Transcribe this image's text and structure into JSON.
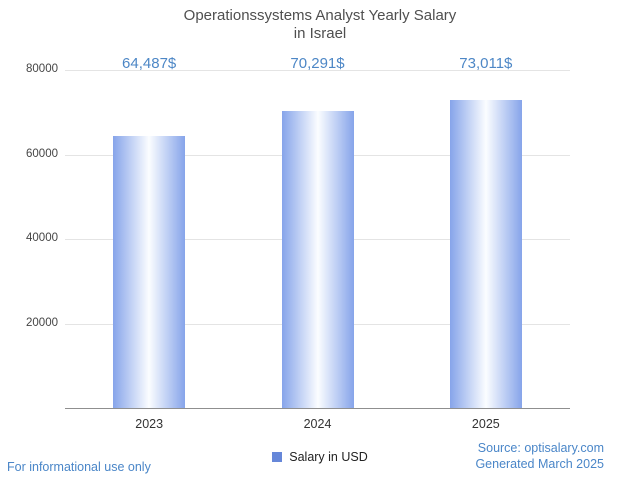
{
  "title": {
    "line1": "Operationssystems Analyst Yearly Salary",
    "line2": "in Israel"
  },
  "chart_data": {
    "type": "bar",
    "title": "Operationssystems Analyst Yearly Salary in Israel",
    "categories": [
      "2023",
      "2024",
      "2025"
    ],
    "values": [
      64487,
      70291,
      73011
    ],
    "value_labels": [
      "64,487$",
      "70,291$",
      "73,011$"
    ],
    "xlabel": "",
    "ylabel": "",
    "ylim": [
      0,
      80000
    ],
    "yticks": [
      20000,
      40000,
      60000,
      80000
    ],
    "grid": true,
    "legend": {
      "label": "Salary in USD",
      "position": "bottom"
    },
    "bar_color": "#86a4ea",
    "accent_color": "#4a86c8"
  },
  "footer": {
    "disclaimer": "For informational use only",
    "source": "Source: optisalary.com",
    "generated": "Generated March 2025"
  }
}
